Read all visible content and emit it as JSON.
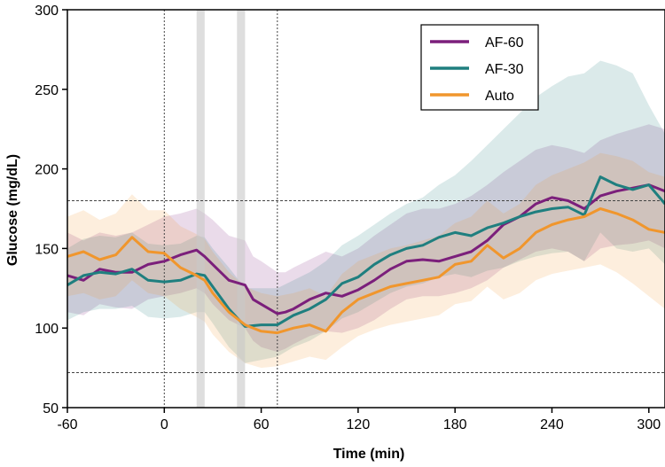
{
  "chart_data": {
    "type": "line",
    "xlabel": "Time (min)",
    "ylabel": "Glucose (mg/dL)",
    "xlim": [
      -60,
      310
    ],
    "ylim": [
      50,
      300
    ],
    "xticks": [
      -60,
      0,
      60,
      120,
      180,
      240,
      300
    ],
    "yticks": [
      50,
      100,
      150,
      200,
      250,
      300
    ],
    "legend_position": "top-right",
    "reference_lines": {
      "horizontal": [
        180,
        72
      ],
      "vertical": [
        0,
        70
      ]
    },
    "shaded_intervals": [
      [
        20,
        25
      ],
      [
        45,
        50
      ]
    ],
    "series": [
      {
        "name": "AF-60",
        "color": "#7b1f7b",
        "x": [
          -60,
          -50,
          -40,
          -30,
          -20,
          -10,
          0,
          10,
          20,
          25,
          30,
          40,
          50,
          55,
          60,
          70,
          75,
          80,
          90,
          100,
          110,
          120,
          130,
          140,
          150,
          160,
          170,
          180,
          190,
          200,
          210,
          220,
          230,
          240,
          250,
          260,
          270,
          280,
          290,
          300,
          310
        ],
        "mean": [
          133,
          130,
          137,
          135,
          135,
          140,
          142,
          146,
          149,
          145,
          140,
          130,
          127,
          118,
          115,
          109,
          110,
          112,
          118,
          122,
          120,
          124,
          130,
          137,
          142,
          143,
          142,
          145,
          148,
          155,
          165,
          170,
          178,
          182,
          180,
          175,
          183,
          186,
          188,
          190,
          186
        ],
        "lower": [
          110,
          108,
          115,
          113,
          112,
          118,
          120,
          122,
          125,
          122,
          115,
          105,
          100,
          92,
          88,
          85,
          87,
          90,
          95,
          98,
          97,
          100,
          105,
          112,
          118,
          120,
          120,
          122,
          125,
          130,
          138,
          143,
          148,
          150,
          148,
          142,
          150,
          152,
          153,
          155,
          150
        ],
        "upper": [
          160,
          155,
          160,
          158,
          160,
          165,
          170,
          172,
          175,
          172,
          168,
          158,
          155,
          145,
          142,
          135,
          135,
          138,
          143,
          148,
          145,
          150,
          158,
          165,
          172,
          175,
          175,
          178,
          183,
          190,
          198,
          205,
          212,
          215,
          213,
          210,
          218,
          222,
          225,
          228,
          225
        ]
      },
      {
        "name": "AF-30",
        "color": "#1f7f7f",
        "x": [
          -60,
          -50,
          -40,
          -30,
          -20,
          -10,
          0,
          10,
          20,
          25,
          30,
          40,
          50,
          60,
          70,
          80,
          90,
          100,
          110,
          120,
          130,
          140,
          150,
          160,
          170,
          180,
          190,
          200,
          210,
          220,
          230,
          240,
          250,
          260,
          270,
          280,
          290,
          300,
          310
        ],
        "mean": [
          127,
          133,
          135,
          134,
          137,
          130,
          129,
          130,
          134,
          133,
          126,
          112,
          101,
          102,
          102,
          108,
          112,
          118,
          128,
          132,
          140,
          146,
          150,
          152,
          157,
          160,
          158,
          163,
          166,
          170,
          173,
          175,
          176,
          171,
          195,
          190,
          187,
          190,
          178
        ],
        "lower": [
          105,
          110,
          112,
          112,
          114,
          107,
          106,
          107,
          110,
          110,
          103,
          88,
          78,
          80,
          82,
          88,
          92,
          98,
          106,
          110,
          116,
          122,
          126,
          128,
          132,
          134,
          132,
          136,
          138,
          142,
          145,
          147,
          148,
          142,
          160,
          150,
          148,
          150,
          140
        ],
        "upper": [
          150,
          156,
          158,
          157,
          160,
          153,
          152,
          153,
          158,
          157,
          150,
          138,
          125,
          125,
          125,
          130,
          135,
          142,
          152,
          158,
          165,
          172,
          178,
          182,
          190,
          196,
          205,
          215,
          225,
          235,
          245,
          252,
          258,
          260,
          268,
          265,
          260,
          240,
          222
        ]
      },
      {
        "name": "Auto",
        "color": "#f0962d",
        "x": [
          -60,
          -50,
          -40,
          -30,
          -20,
          -10,
          0,
          10,
          20,
          25,
          30,
          40,
          50,
          60,
          70,
          80,
          90,
          100,
          110,
          120,
          130,
          140,
          150,
          160,
          170,
          180,
          190,
          200,
          210,
          220,
          230,
          240,
          250,
          260,
          270,
          280,
          290,
          300,
          310
        ],
        "mean": [
          145,
          148,
          143,
          146,
          157,
          148,
          147,
          138,
          133,
          130,
          122,
          110,
          102,
          98,
          97,
          100,
          102,
          98,
          110,
          118,
          122,
          126,
          128,
          130,
          132,
          140,
          142,
          152,
          144,
          150,
          160,
          165,
          168,
          170,
          175,
          172,
          168,
          162,
          160
        ],
        "lower": [
          120,
          122,
          118,
          120,
          130,
          122,
          120,
          112,
          107,
          104,
          96,
          85,
          78,
          75,
          76,
          79,
          82,
          80,
          88,
          95,
          99,
          102,
          104,
          106,
          108,
          115,
          117,
          126,
          118,
          122,
          130,
          134,
          136,
          138,
          140,
          135,
          128,
          120,
          112
        ],
        "upper": [
          170,
          174,
          168,
          172,
          184,
          174,
          174,
          164,
          159,
          156,
          148,
          135,
          126,
          122,
          120,
          122,
          125,
          120,
          134,
          142,
          146,
          150,
          152,
          155,
          158,
          166,
          170,
          180,
          172,
          178,
          190,
          196,
          200,
          204,
          210,
          208,
          205,
          198,
          195
        ]
      }
    ]
  }
}
